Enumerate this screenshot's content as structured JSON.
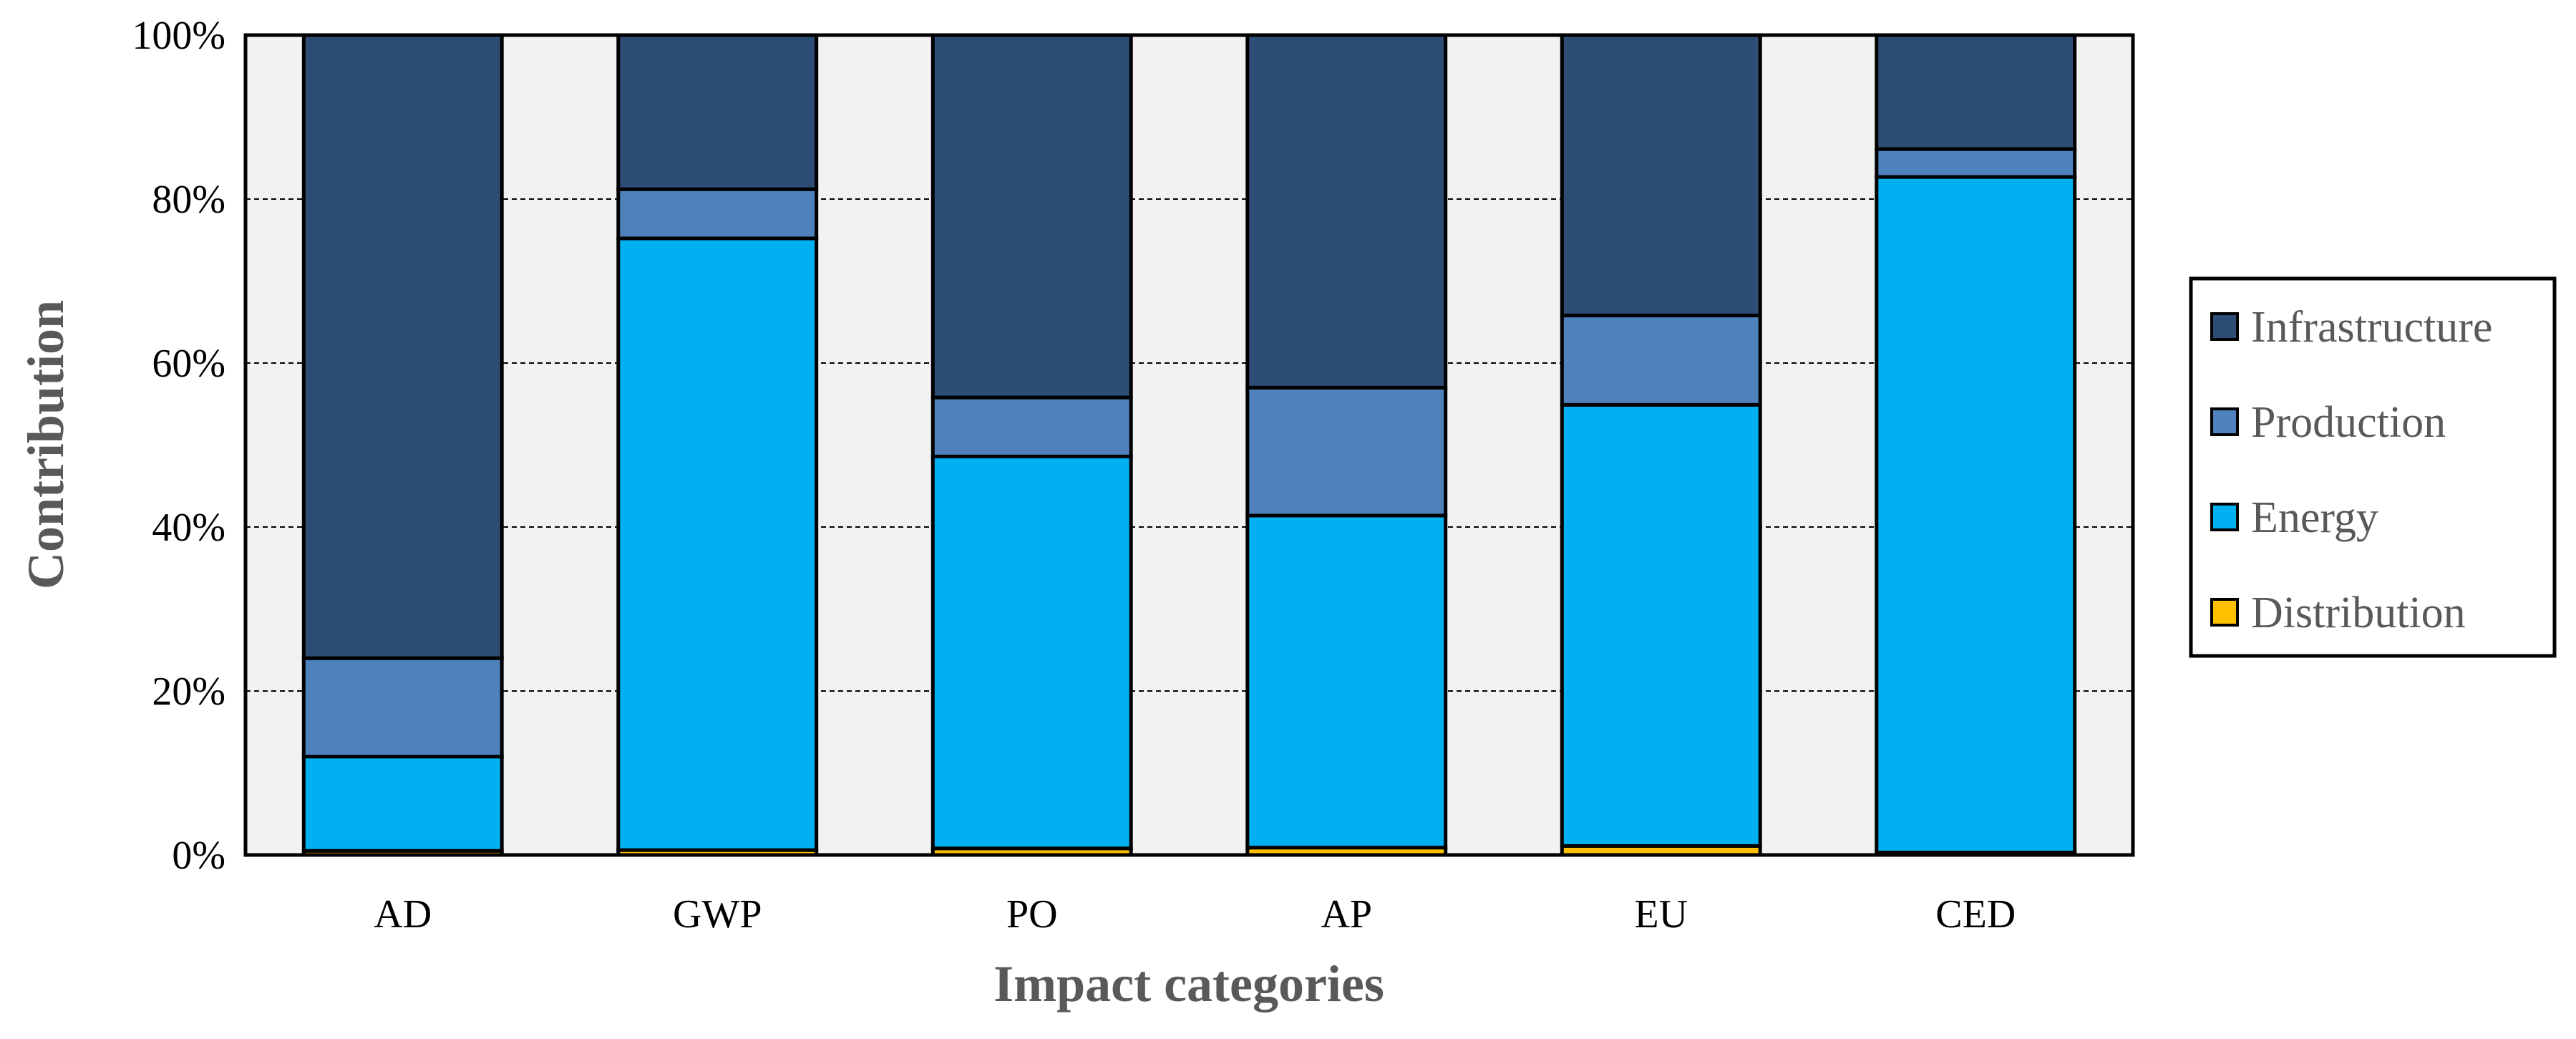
{
  "chart_data": {
    "type": "bar",
    "stacked": true,
    "percent": true,
    "xlabel": "Impact categories",
    "ylabel": "Contribution",
    "categories": [
      "AD",
      "GWP",
      "PO",
      "AP",
      "EU",
      "CED"
    ],
    "y_ticks": [
      "0%",
      "20%",
      "40%",
      "60%",
      "80%",
      "100%"
    ],
    "ylim": [
      0,
      100
    ],
    "grid": "horizontal dashed",
    "legend_position": "right",
    "series": [
      {
        "name": "Distribution",
        "color": "#FFC000",
        "values": [
          0.5,
          0.6,
          0.8,
          0.9,
          1.1,
          0.3
        ]
      },
      {
        "name": "Energy",
        "color": "#00B0F0",
        "values": [
          11.5,
          74.6,
          47.8,
          40.5,
          53.8,
          82.4
        ]
      },
      {
        "name": "Production",
        "color": "#4F81BD",
        "values": [
          12.0,
          6.0,
          7.2,
          15.6,
          10.9,
          3.4
        ]
      },
      {
        "name": "Infrastructure",
        "color": "#2E4D76",
        "values": [
          76.0,
          18.8,
          44.2,
          43.0,
          34.2,
          13.9
        ]
      }
    ],
    "legend_order": [
      "Infrastructure",
      "Production",
      "Energy",
      "Distribution"
    ]
  }
}
